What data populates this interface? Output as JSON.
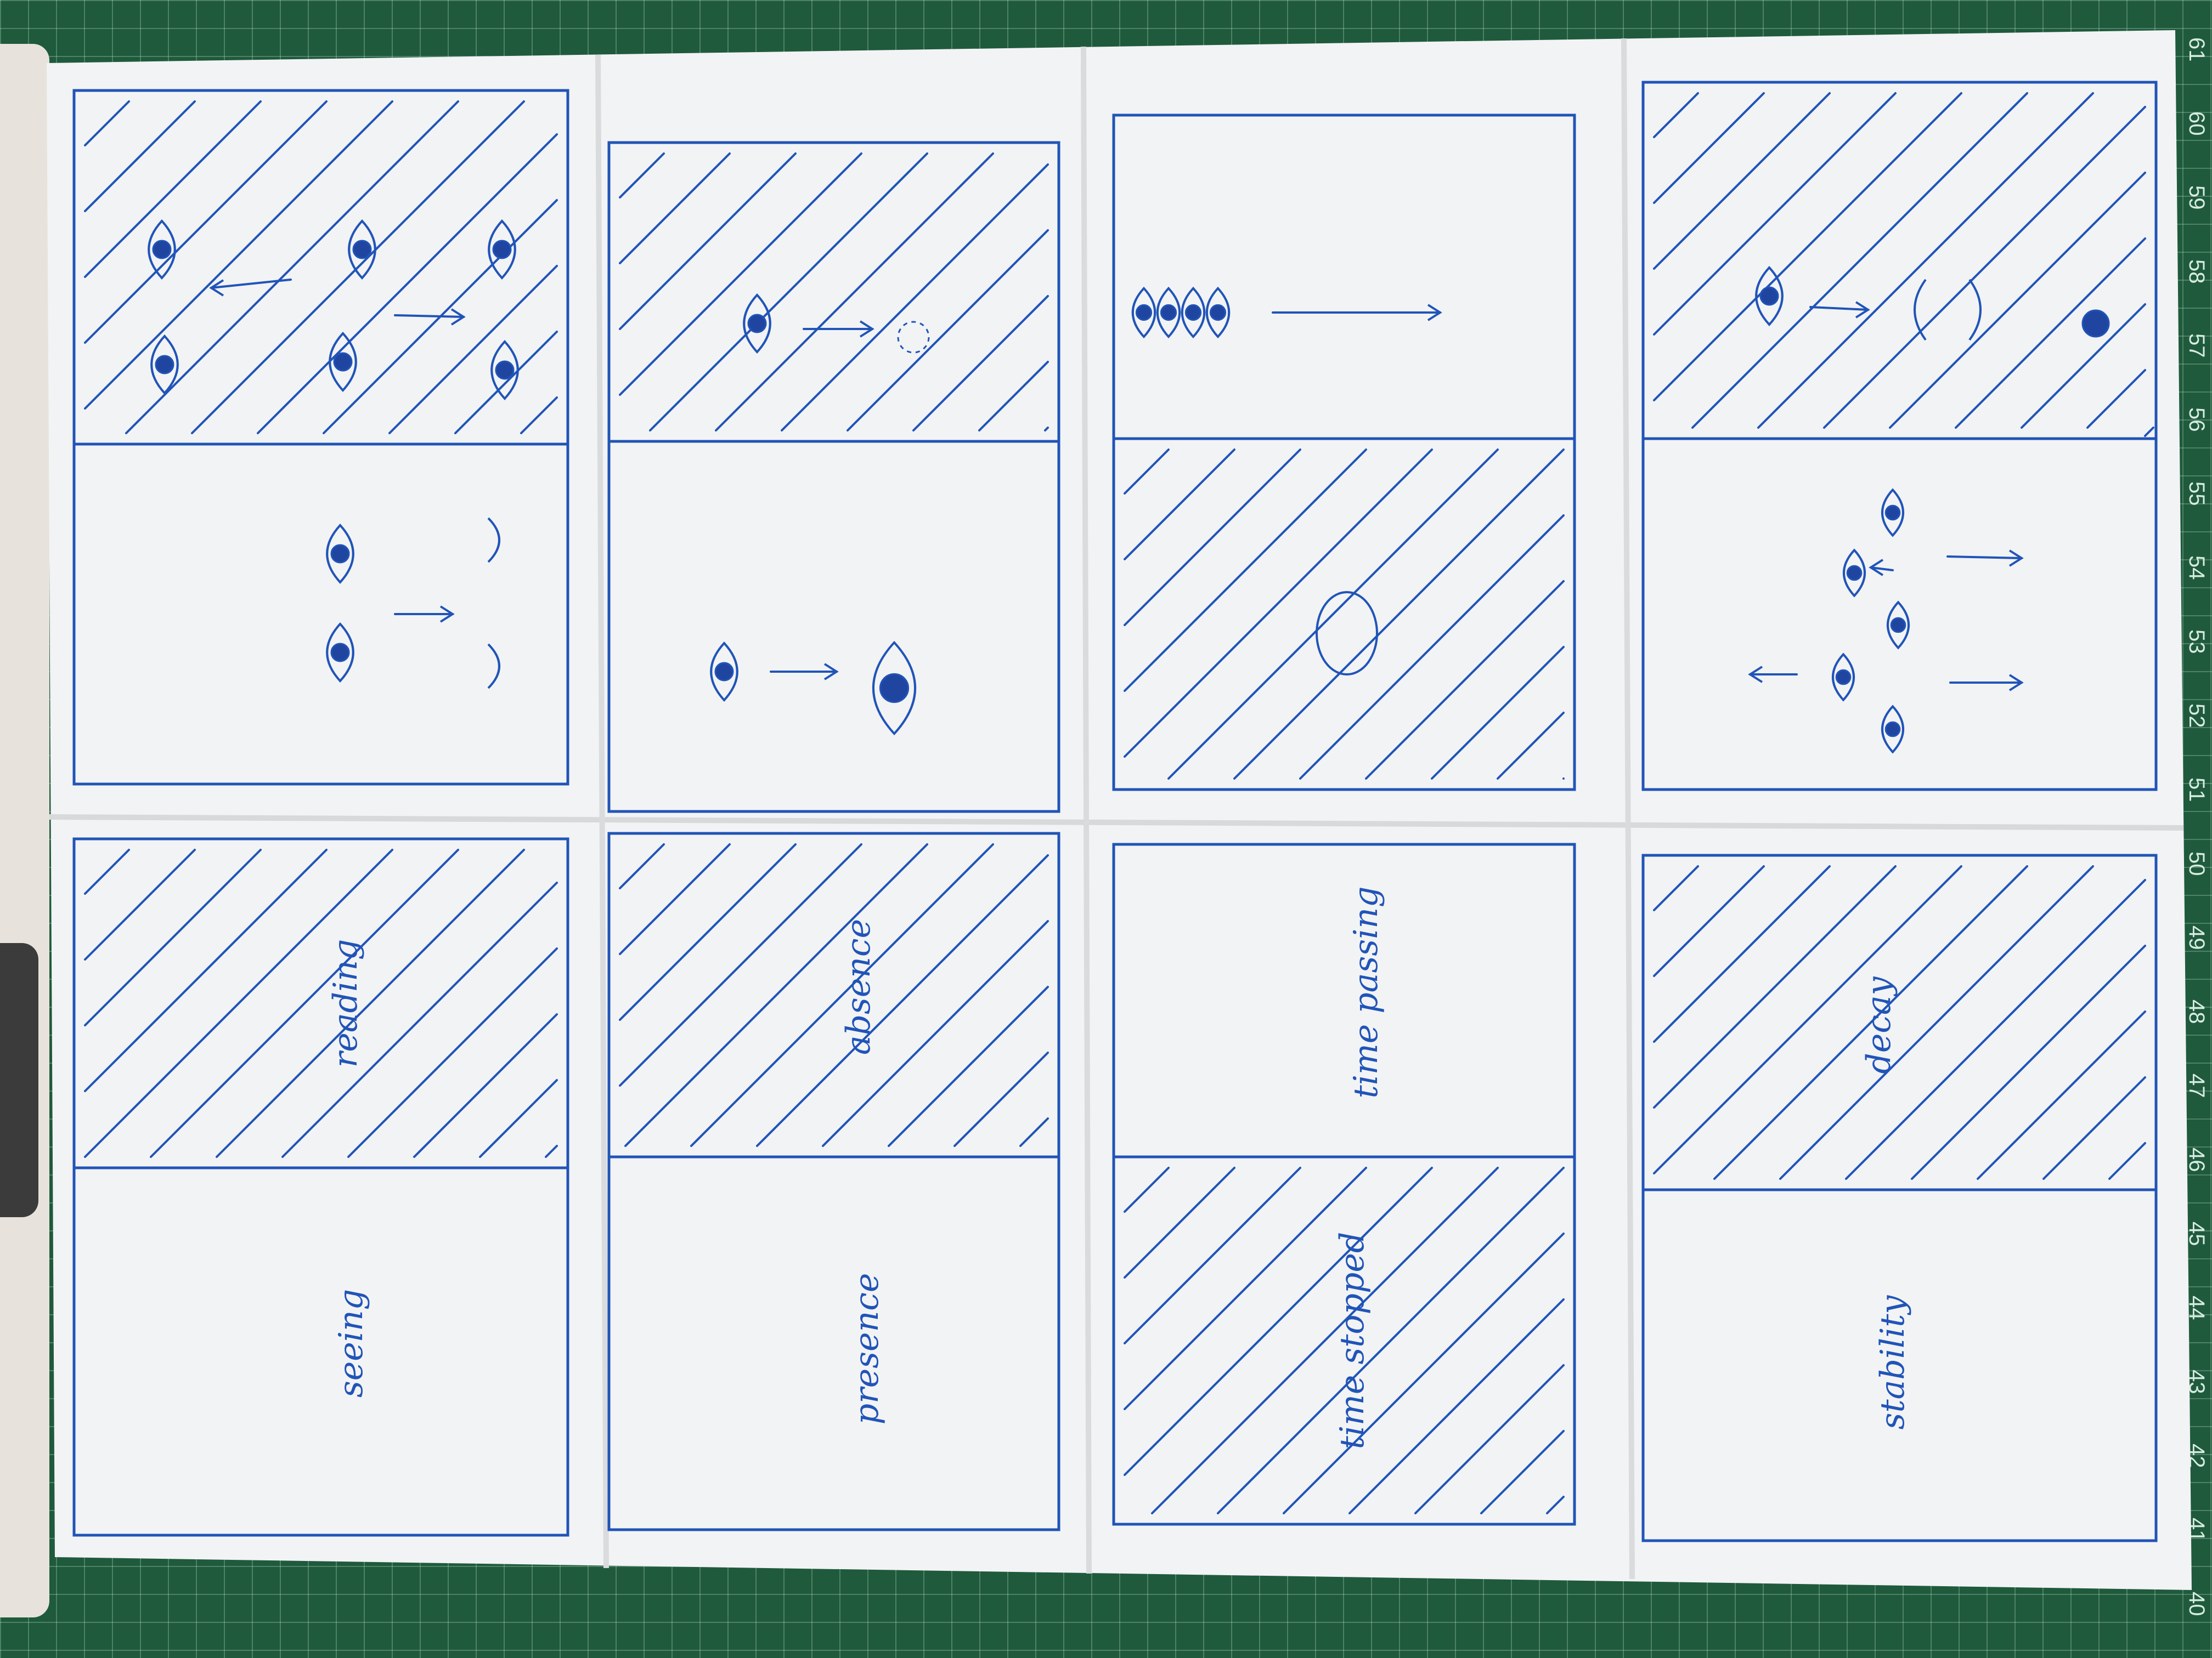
{
  "panels": [
    {
      "top": "",
      "bottom": "",
      "labels": [
        "reading",
        "seeing"
      ]
    },
    {
      "labels": [
        "absence",
        "presence"
      ]
    },
    {
      "labels": [
        "time passing",
        "time stopped"
      ]
    },
    {
      "labels": [
        "decay",
        "stability"
      ]
    }
  ],
  "ruler_numbers": [
    "61",
    "60",
    "59",
    "58",
    "57",
    "56",
    "55",
    "54",
    "53",
    "52",
    "51",
    "50",
    "49",
    "48",
    "47",
    "46",
    "45",
    "44",
    "43",
    "42",
    "41",
    "40"
  ],
  "colors": {
    "ink": "#2054b8",
    "paper": "#f2f3f4",
    "mat": "#1f5a3c"
  }
}
